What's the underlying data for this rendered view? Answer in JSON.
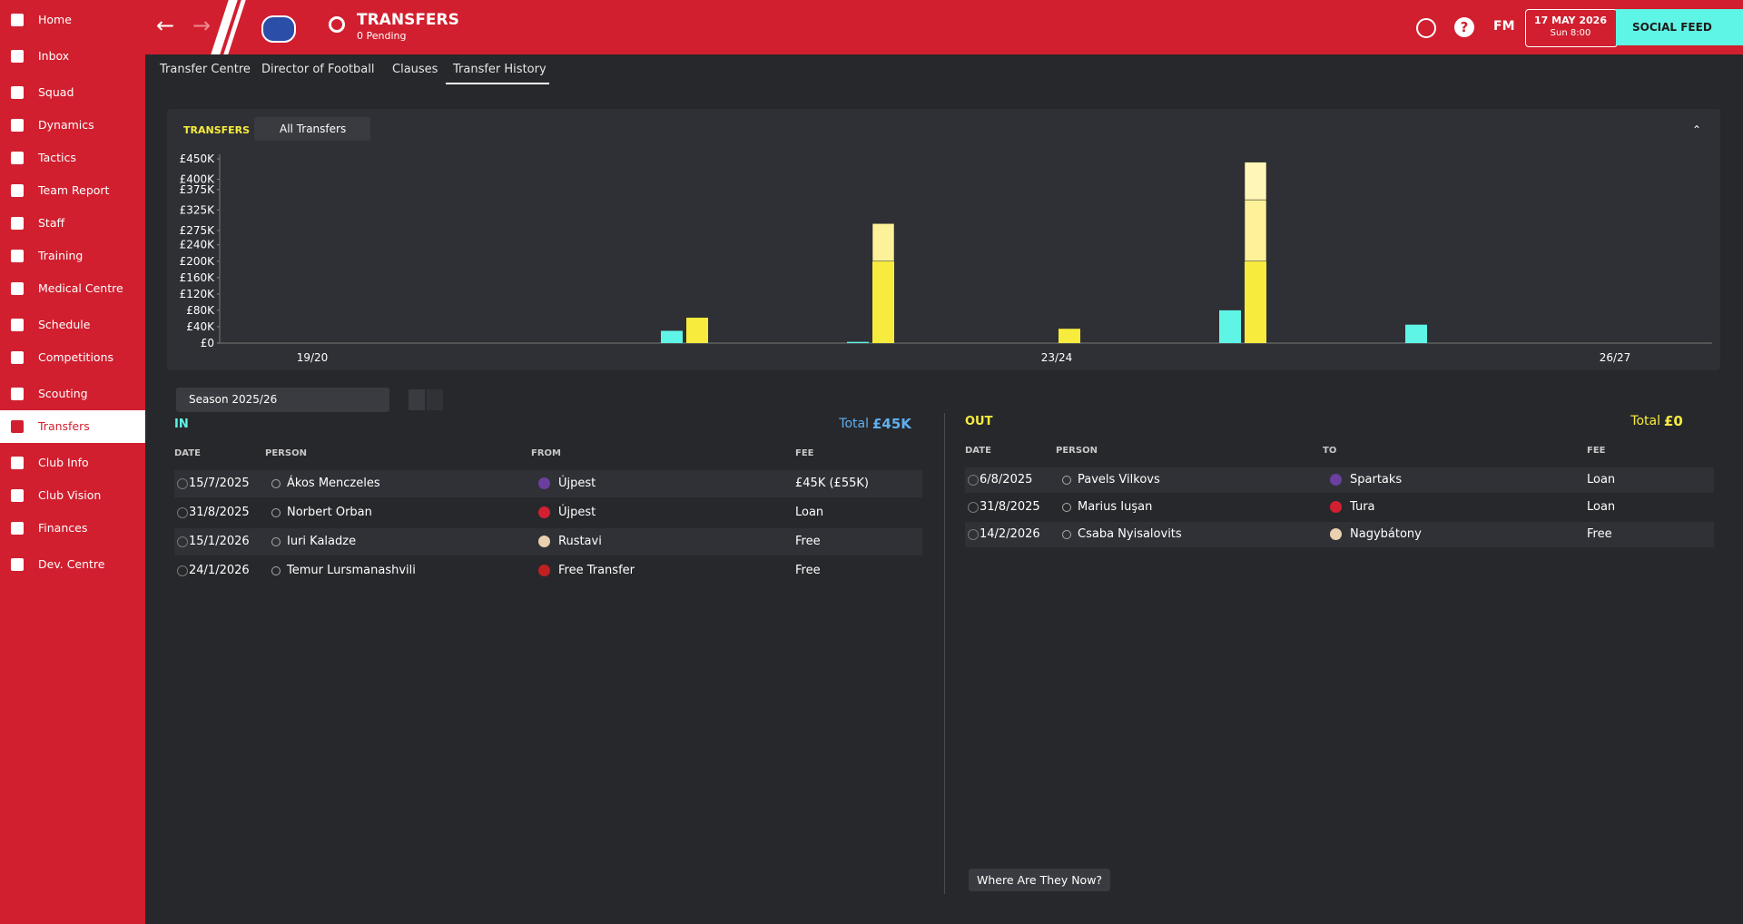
{
  "sidebar": {
    "items": [
      "Home",
      "Inbox",
      "Squad",
      "Dynamics",
      "Tactics",
      "Team Report",
      "Staff",
      "Training",
      "Medical Centre",
      "Schedule",
      "Competitions",
      "Scouting",
      "Transfers",
      "Club Info",
      "Club Vision",
      "Finances",
      "Dev. Centre"
    ],
    "active_item": 12
  },
  "header": {
    "title": "TRANSFERS",
    "subtitle": "0 Pending",
    "logo": "FM",
    "date": "17 MAY 2026",
    "time": "Sun 8:00",
    "social": "SOCIAL FEED"
  },
  "tabs": [
    "Transfer Centre",
    "Director of Football",
    "Clauses",
    "Transfer History"
  ],
  "chart_data": {
    "type": "bar",
    "title": "TRANSFERS",
    "filter": "All Transfers",
    "categories": [
      "19/20",
      null,
      null,
      null,
      "23/24",
      null,
      null,
      "26/27"
    ],
    "series": [
      {
        "color": "#5ff5e6",
        "values": [
          0,
          0,
          30000,
          3000,
          0,
          80000,
          45000,
          0
        ]
      },
      {
        "color": "#f7ec3d",
        "values": [
          0,
          0,
          62000,
          200000,
          35000,
          200000,
          0,
          0
        ],
        "stack": "out"
      },
      {
        "color": "#fdf29a",
        "values": [
          0,
          0,
          0,
          92000,
          0,
          150000,
          0,
          0
        ],
        "stack": "out"
      },
      {
        "color": "#fff6b8",
        "values": [
          0,
          0,
          0,
          0,
          0,
          92000,
          0,
          0
        ],
        "stack": "out"
      }
    ],
    "ylim": [
      0,
      450000
    ],
    "yticks": [
      {
        "value": 0,
        "label": "£0"
      },
      {
        "value": 40000,
        "label": "£40K"
      },
      {
        "value": 80000,
        "label": "£80K"
      },
      {
        "value": 120000,
        "label": "£120K"
      },
      {
        "value": 160000,
        "label": "£160K"
      },
      {
        "value": 200000,
        "label": "£200K"
      },
      {
        "value": 240000,
        "label": "£240K"
      },
      {
        "value": 275000,
        "label": "£275K"
      },
      {
        "value": 325000,
        "label": "£325K"
      },
      {
        "value": 375000,
        "label": "£375K"
      },
      {
        "value": 400000,
        "label": "£400K"
      },
      {
        "value": 450000,
        "label": "£450K"
      }
    ]
  },
  "season_select": "Season 2025/26",
  "in": {
    "title": "IN",
    "total_label": "Total",
    "total": "£45K",
    "columns": [
      "DATE",
      "PERSON",
      "FROM",
      "FEE"
    ],
    "rows": [
      [
        "15/7/2025",
        "Ákos Menczeles",
        "Újpest",
        "£45K (£55K)"
      ],
      [
        "31/8/2025",
        "Norbert Orban",
        "Újpest",
        "Loan"
      ],
      [
        "15/1/2026",
        "Iuri Kaladze",
        "Rustavi",
        "Free"
      ],
      [
        "24/1/2026",
        "Temur Lursmanashvili",
        "Free Transfer",
        "Free"
      ]
    ]
  },
  "out": {
    "title": "OUT",
    "total_label": "Total",
    "total": "£0",
    "columns": [
      "DATE",
      "PERSON",
      "TO",
      "FEE"
    ],
    "rows": [
      [
        "6/8/2025",
        "Pavels Vilkovs",
        "Spartaks",
        "Loan"
      ],
      [
        "31/8/2025",
        "Marius Iuşan",
        "Tura",
        "Loan"
      ],
      [
        "14/2/2026",
        "Csaba Nyisalovits",
        "Nagybátony",
        "Free"
      ]
    ]
  },
  "button": "Where Are They Now?"
}
